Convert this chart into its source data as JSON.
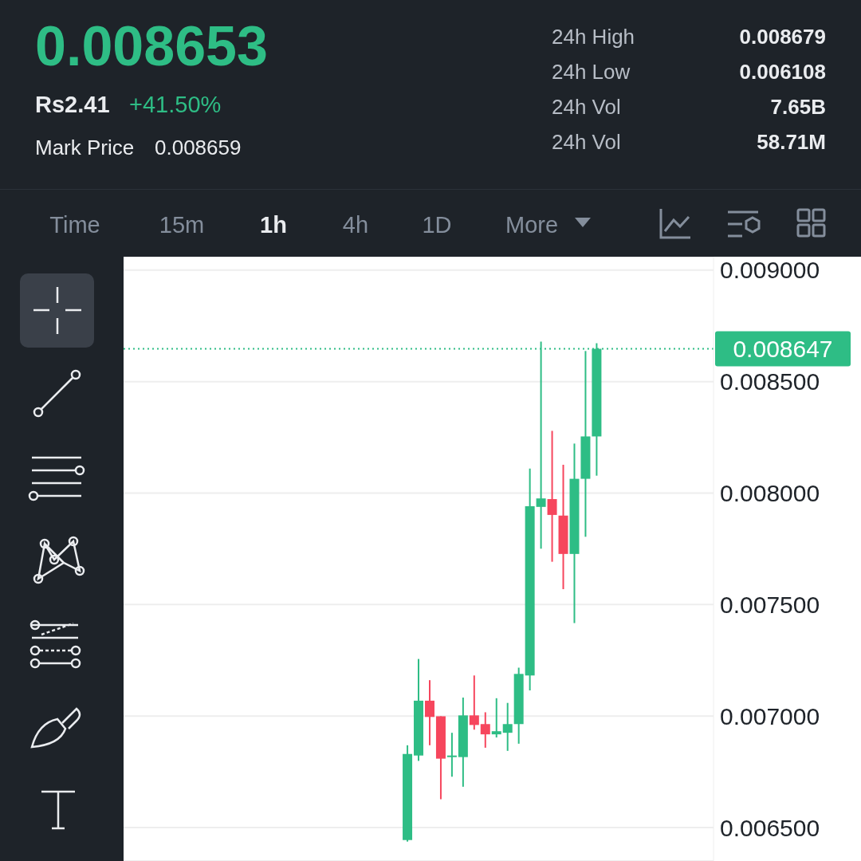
{
  "chart_data": {
    "type": "candlestick",
    "categories": [
      null,
      null,
      null,
      null,
      null,
      null,
      null,
      null,
      null,
      null,
      null,
      null,
      null,
      null,
      null,
      null,
      null,
      null,
      null,
      null,
      null,
      null,
      null,
      null,
      null,
      null,
      null,
      null,
      null,
      null,
      null,
      null,
      null,
      null,
      null,
      null,
      null,
      null,
      null,
      null,
      null,
      null,
      null,
      null,
      null,
      null,
      null,
      null,
      null,
      null,
      null,
      null,
      null
    ],
    "ohlc": [
      null,
      null,
      null,
      null,
      null,
      null,
      null,
      null,
      null,
      null,
      null,
      null,
      null,
      null,
      null,
      null,
      null,
      null,
      null,
      null,
      null,
      null,
      null,
      null,
      null,
      [
        0.006444,
        0.006869,
        0.006437,
        0.00683
      ],
      [
        0.006823,
        0.007256,
        0.006799,
        0.007069
      ],
      [
        0.007069,
        0.007161,
        0.006869,
        0.006996
      ],
      [
        0.006999,
        0.006999,
        0.006627,
        0.006809
      ],
      [
        0.006816,
        0.006925,
        0.006728,
        0.006823
      ],
      [
        0.006816,
        0.007083,
        0.006683,
        0.007003
      ],
      [
        0.007003,
        0.007182,
        0.006939,
        0.00696
      ],
      [
        0.006964,
        0.007017,
        0.006858,
        0.006918
      ],
      [
        0.006918,
        0.00708,
        0.006904,
        0.006932
      ],
      [
        0.006925,
        0.007059,
        0.006844,
        0.006964
      ],
      [
        0.006964,
        0.007217,
        0.006876,
        0.007189
      ],
      [
        0.007182,
        0.00811,
        0.007115,
        0.007941
      ],
      [
        0.007938,
        0.008679,
        0.007751,
        0.007976
      ],
      [
        0.007973,
        0.008279,
        0.007692,
        0.007902
      ],
      [
        0.007899,
        0.008127,
        0.007569,
        0.007727
      ],
      [
        0.007727,
        0.008222,
        0.007417,
        0.008064
      ],
      [
        0.008064,
        0.008637,
        0.007804,
        0.008254
      ],
      [
        0.008254,
        0.008672,
        0.008078,
        0.008647
      ],
      null,
      null,
      null,
      null,
      null,
      null,
      null,
      null,
      null,
      null
    ],
    "colors": [
      null,
      null,
      null,
      null,
      null,
      null,
      null,
      null,
      null,
      null,
      null,
      null,
      null,
      null,
      null,
      null,
      null,
      null,
      null,
      null,
      null,
      null,
      null,
      null,
      null,
      "#2ebd85",
      "#2ebd85",
      "#f6465d",
      "#f6465d",
      "#2ebd85",
      "#2ebd85",
      "#f6465d",
      "#f6465d",
      "#2ebd85",
      "#2ebd85",
      "#2ebd85",
      "#2ebd85",
      "#2ebd85",
      "#f6465d",
      "#f6465d",
      "#2ebd85",
      "#2ebd85",
      "#2ebd85",
      null,
      null,
      null,
      null,
      null,
      null,
      null,
      null,
      null,
      null
    ],
    "ylim": [
      0.00635,
      0.00906
    ],
    "yticks": [
      {
        "value": 0.0065,
        "label": "0.006500"
      },
      {
        "value": 0.007,
        "label": "0.007000"
      },
      {
        "value": 0.0075,
        "label": "0.007500"
      },
      {
        "value": 0.008,
        "label": "0.008000"
      },
      {
        "value": 0.0085,
        "label": "0.008500"
      },
      {
        "value": 0.009,
        "label": "0.009000"
      }
    ],
    "grid": "y",
    "tick_labels": "y",
    "ref_lines": [
      {
        "axis": "y",
        "value": 0.008647,
        "label": "0.008647",
        "color": "#2ebd85",
        "line_style": "dotted"
      }
    ],
    "annotations": [
      "0.008653",
      "Rs2.41",
      "+41.50%",
      "Mark Price",
      "0.008659",
      "24h High",
      "0.008679",
      "24h Low",
      "0.006108",
      "24h Vol",
      "7.65B",
      "24h Vol",
      "58.71M",
      "Time",
      "15m",
      "1h",
      "4h",
      "1D",
      "More"
    ]
  }
}
